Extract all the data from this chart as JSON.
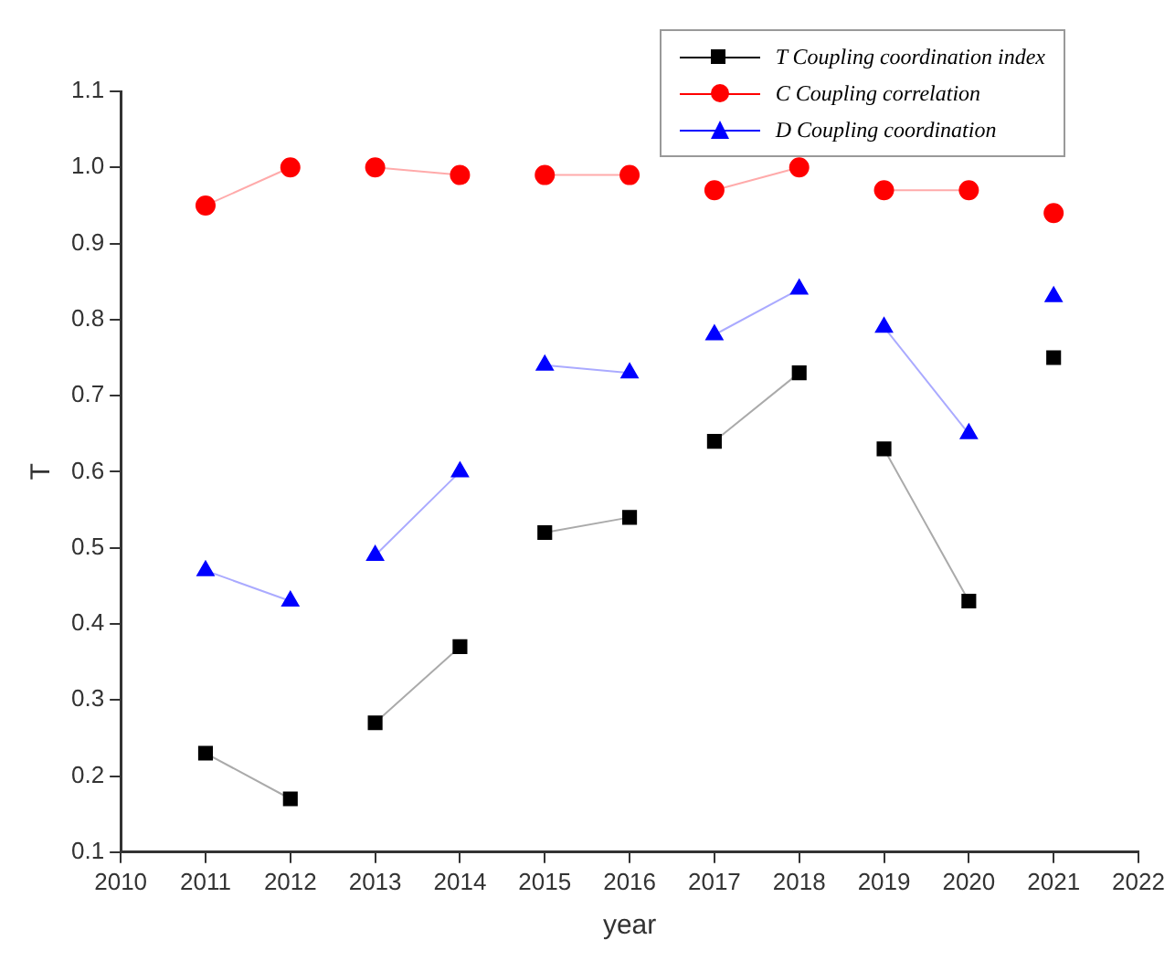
{
  "chart_data": {
    "type": "line",
    "xlabel": "year",
    "ylabel": "T",
    "x": [
      2011,
      2012,
      2012.5,
      2013,
      2014,
      2014.5,
      2015,
      2016,
      2016.5,
      2017,
      2018,
      2018.5,
      2019,
      2020,
      2020.5,
      2021
    ],
    "series": [
      {
        "name": "T Coupling coordination index",
        "color": "#000000",
        "marker": "square",
        "values": [
          0.23,
          0.17,
          null,
          0.27,
          0.37,
          null,
          0.52,
          0.54,
          null,
          0.64,
          0.73,
          null,
          0.63,
          0.43,
          null,
          0.75
        ]
      },
      {
        "name": "C Coupling correlation",
        "color": "#ff0000",
        "marker": "circle",
        "values": [
          0.95,
          1.0,
          null,
          1.0,
          0.99,
          null,
          0.99,
          0.99,
          null,
          0.97,
          1.0,
          null,
          0.97,
          0.97,
          null,
          0.94
        ]
      },
      {
        "name": "D Coupling coordination",
        "color": "#0000ff",
        "marker": "triangle",
        "values": [
          0.47,
          0.43,
          null,
          0.49,
          0.6,
          null,
          0.74,
          0.73,
          null,
          0.78,
          0.84,
          null,
          0.79,
          0.65,
          null,
          0.83
        ]
      }
    ],
    "xlim": [
      2010,
      2022
    ],
    "xticks": [
      2010,
      2011,
      2012,
      2013,
      2014,
      2015,
      2016,
      2017,
      2018,
      2019,
      2020,
      2021,
      2022
    ],
    "ylim": [
      0.1,
      1.1
    ],
    "yticks": [
      {
        "value": 0.1,
        "label": "0.1"
      },
      {
        "value": 0.2,
        "label": "0.2"
      },
      {
        "value": 0.3,
        "label": "0.3"
      },
      {
        "value": 0.4,
        "label": "0.4"
      },
      {
        "value": 0.5,
        "label": "0.5"
      },
      {
        "value": 0.6,
        "label": "0.6"
      },
      {
        "value": 0.7,
        "label": "0.7"
      },
      {
        "value": 0.8,
        "label": "0.8"
      },
      {
        "value": 0.9,
        "label": "0.9"
      },
      {
        "value": 1.0,
        "label": "1.0"
      },
      {
        "value": 1.1,
        "label": "1.1"
      }
    ],
    "grid": false,
    "legend": "top right"
  }
}
